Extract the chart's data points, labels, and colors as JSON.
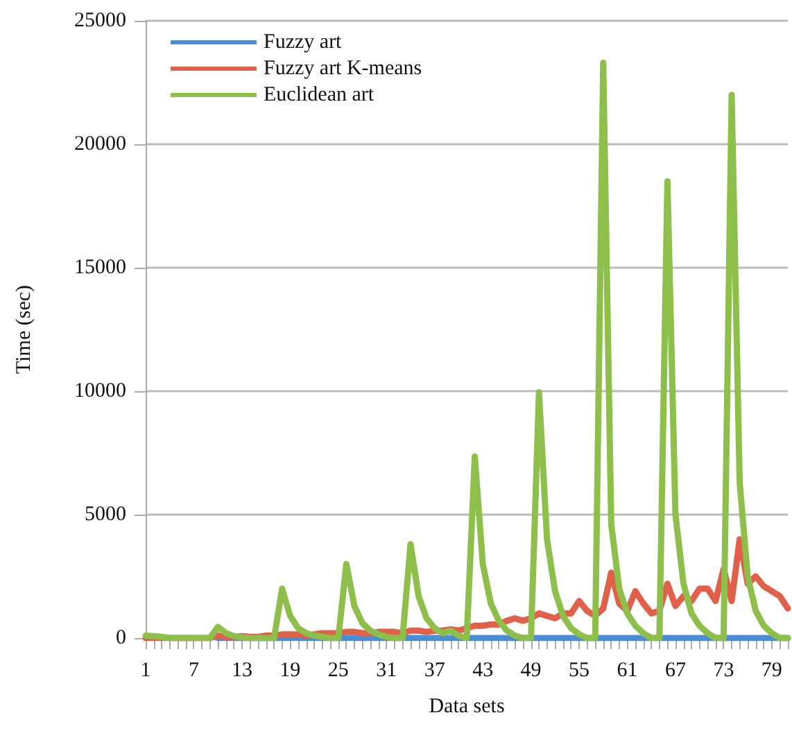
{
  "chart_data": {
    "type": "line",
    "xlabel": "Data sets",
    "ylabel": "Time (sec)",
    "categories": [
      "1",
      null,
      null,
      null,
      null,
      null,
      "7",
      null,
      null,
      null,
      null,
      null,
      "13",
      null,
      null,
      null,
      null,
      null,
      "19",
      null,
      null,
      null,
      null,
      null,
      "25",
      null,
      null,
      null,
      null,
      null,
      "31",
      null,
      null,
      null,
      null,
      null,
      "37",
      null,
      null,
      null,
      null,
      null,
      "43",
      null,
      null,
      null,
      null,
      null,
      "49",
      null,
      null,
      null,
      null,
      null,
      "55",
      null,
      null,
      null,
      null,
      null,
      "61",
      null,
      null,
      null,
      null,
      null,
      "67",
      null,
      null,
      null,
      null,
      null,
      "73",
      null,
      null,
      null,
      null,
      null,
      "79",
      null,
      null
    ],
    "series": [
      {
        "name": "Fuzzy art",
        "color": "#4a8fd6",
        "values": [
          null,
          null,
          null,
          null,
          null,
          null,
          null,
          null,
          null,
          0,
          0,
          0,
          0,
          0,
          0,
          0,
          0,
          0,
          0,
          0,
          0,
          0,
          0,
          0,
          0,
          0,
          0,
          0,
          0,
          0,
          0,
          0,
          0,
          0,
          0,
          0,
          0,
          0,
          0,
          0,
          0,
          0,
          0,
          0,
          0,
          0,
          0,
          0,
          0,
          0,
          0,
          0,
          0,
          0,
          0,
          0,
          0,
          0,
          0,
          0,
          0,
          0,
          0,
          0,
          0,
          0,
          0,
          0,
          0,
          0,
          0,
          0,
          0,
          0,
          0,
          0,
          0,
          0,
          0,
          0,
          0
        ]
      },
      {
        "name": "Fuzzy art K-means",
        "color": "#e0604a",
        "values": [
          0,
          0,
          0,
          0,
          0,
          0,
          0,
          0,
          0,
          100,
          50,
          50,
          80,
          50,
          50,
          100,
          100,
          150,
          150,
          150,
          100,
          150,
          200,
          200,
          200,
          250,
          250,
          200,
          200,
          250,
          250,
          250,
          200,
          300,
          300,
          250,
          300,
          300,
          350,
          300,
          400,
          500,
          500,
          550,
          550,
          700,
          800,
          700,
          800,
          1000,
          900,
          800,
          1000,
          1000,
          1500,
          1100,
          900,
          1200,
          2650,
          1400,
          1100,
          1900,
          1400,
          1000,
          1100,
          2200,
          1300,
          1700,
          1500,
          2000,
          2000,
          1500,
          2800,
          1500,
          4000,
          2200,
          2500,
          2100,
          1900,
          1700,
          1200
        ]
      },
      {
        "name": "Euclidean art",
        "color": "#8dbf4a",
        "values": [
          100,
          80,
          50,
          0,
          0,
          0,
          0,
          0,
          0,
          450,
          200,
          80,
          30,
          0,
          0,
          0,
          0,
          2000,
          900,
          400,
          200,
          100,
          50,
          0,
          0,
          3000,
          1300,
          600,
          300,
          150,
          50,
          0,
          0,
          3800,
          1700,
          800,
          400,
          200,
          300,
          100,
          0,
          7350,
          3000,
          1400,
          700,
          300,
          100,
          0,
          0,
          9950,
          4000,
          1900,
          900,
          400,
          150,
          0,
          0,
          23300,
          4600,
          2000,
          1000,
          500,
          200,
          0,
          0,
          18500,
          5000,
          2200,
          1000,
          500,
          200,
          0,
          0,
          22000,
          6300,
          2500,
          1100,
          500,
          200,
          0,
          0
        ]
      }
    ],
    "ylim": [
      0,
      25000
    ],
    "yticks": [
      0,
      5000,
      10000,
      15000,
      20000,
      25000
    ],
    "grid": "y",
    "legend": "top left",
    "marker": "none",
    "line_style": "solid"
  }
}
